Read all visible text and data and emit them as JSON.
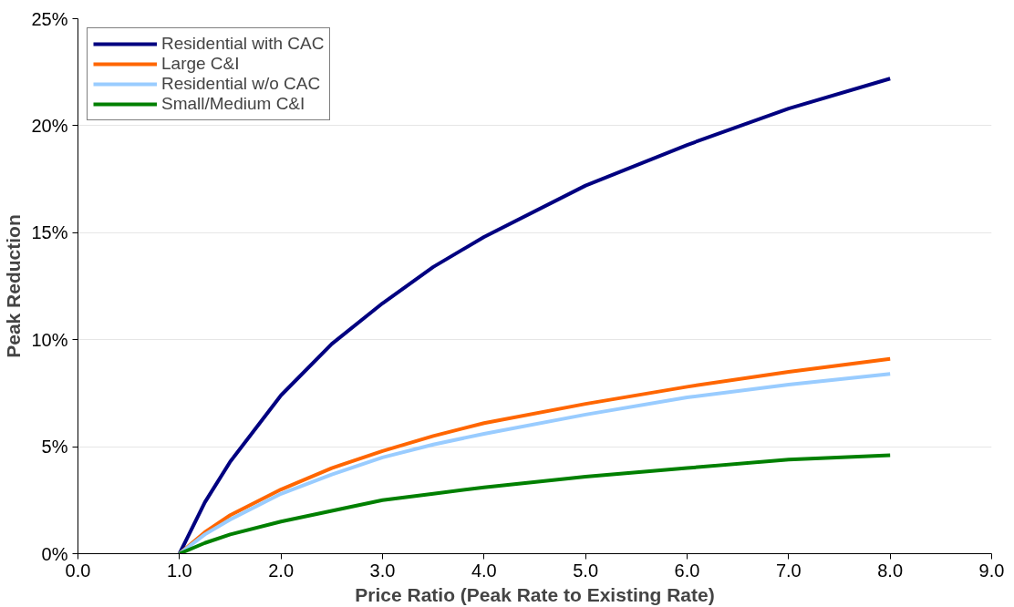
{
  "chart_data": {
    "type": "line",
    "xlabel": "Price Ratio (Peak Rate to Existing Rate)",
    "ylabel": "Peak Reduction",
    "x": [
      1,
      1.25,
      1.5,
      2,
      2.5,
      3,
      3.5,
      4,
      5,
      6,
      7,
      8
    ],
    "series": [
      {
        "name": "Residential with CAC",
        "color": "#000080",
        "values": [
          0,
          2.4,
          4.3,
          7.4,
          9.8,
          11.7,
          13.4,
          14.8,
          17.2,
          19.1,
          20.8,
          22.2
        ]
      },
      {
        "name": "Large C&I",
        "color": "#ff6600",
        "values": [
          0,
          1.0,
          1.8,
          3.0,
          4.0,
          4.8,
          5.5,
          6.1,
          7.0,
          7.8,
          8.5,
          9.1
        ]
      },
      {
        "name": "Residential w/o CAC",
        "color": "#99ccff",
        "values": [
          0,
          0.9,
          1.6,
          2.8,
          3.7,
          4.5,
          5.1,
          5.6,
          6.5,
          7.3,
          7.9,
          8.4
        ]
      },
      {
        "name": "Small/Medium C&I",
        "color": "#008000",
        "values": [
          0,
          0.5,
          0.9,
          1.5,
          2.0,
          2.5,
          2.8,
          3.1,
          3.6,
          4.0,
          4.4,
          4.6
        ]
      }
    ],
    "xlim": [
      0,
      9
    ],
    "ylim": [
      0,
      25
    ],
    "xticks": [
      {
        "value": 0,
        "label": "0.0"
      },
      {
        "value": 1,
        "label": "1.0"
      },
      {
        "value": 2,
        "label": "2.0"
      },
      {
        "value": 3,
        "label": "3.0"
      },
      {
        "value": 4,
        "label": "4.0"
      },
      {
        "value": 5,
        "label": "5.0"
      },
      {
        "value": 6,
        "label": "6.0"
      },
      {
        "value": 7,
        "label": "7.0"
      },
      {
        "value": 8,
        "label": "8.0"
      },
      {
        "value": 9,
        "label": "9.0"
      }
    ],
    "yticks": [
      {
        "value": 0,
        "label": "0%"
      },
      {
        "value": 5,
        "label": "5%"
      },
      {
        "value": 10,
        "label": "10%"
      },
      {
        "value": 15,
        "label": "15%"
      },
      {
        "value": 20,
        "label": "20%"
      },
      {
        "value": 25,
        "label": "25%"
      }
    ],
    "grid": "y",
    "legend": "top left",
    "marker": "none",
    "line_style": "solid"
  }
}
